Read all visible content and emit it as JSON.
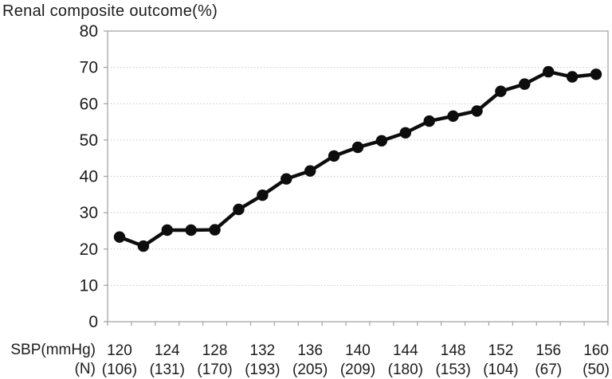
{
  "title": "Renal composite outcome(%)",
  "chart_data": {
    "type": "line",
    "title": "Renal composite outcome(%)",
    "xlabel": "SBP(mmHg)",
    "n_row_label": "(N)",
    "ylabel": "",
    "ylim": [
      0,
      80
    ],
    "yticks": [
      0,
      10,
      20,
      30,
      40,
      50,
      60,
      70,
      80
    ],
    "x": [
      120,
      122,
      124,
      126,
      128,
      130,
      132,
      134,
      136,
      138,
      140,
      142,
      144,
      146,
      148,
      150,
      152,
      154,
      156,
      158,
      160
    ],
    "values": [
      23.3,
      20.8,
      25.2,
      25.2,
      25.3,
      30.9,
      34.8,
      39.3,
      41.5,
      45.6,
      48.0,
      49.8,
      52.0,
      55.2,
      56.6,
      58.0,
      63.4,
      65.4,
      68.8,
      67.4,
      68.1
    ],
    "xtick_labels": [
      "120",
      "124",
      "128",
      "132",
      "136",
      "140",
      "144",
      "148",
      "152",
      "156",
      "160"
    ],
    "n_values": [
      "(106)",
      "(131)",
      "(170)",
      "(193)",
      "(205)",
      "(209)",
      "(180)",
      "(153)",
      "(104)",
      "(67)",
      "(50)"
    ],
    "legend": [],
    "grid": "horizontal-dotted",
    "colors": {
      "series": "#0d0d0d",
      "frame": "#a6a6a6",
      "gridline": "#c9c9c9",
      "text": "#1c1c1c"
    }
  }
}
